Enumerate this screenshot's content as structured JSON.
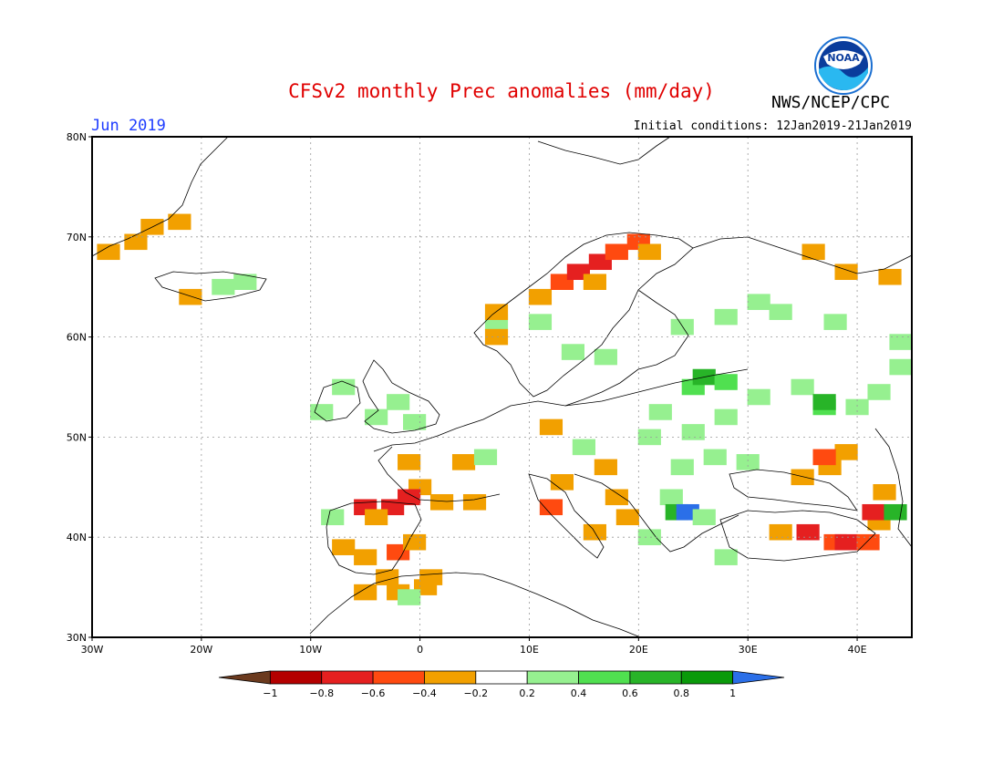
{
  "header": {
    "title": "CFSv2 monthly Prec anomalies (mm/day)",
    "organization": "NWS/NCEP/CPC",
    "logo_text": "NOAA",
    "month": "Jun 2019",
    "initial_conditions": "Initial conditions: 12Jan2019-21Jan2019"
  },
  "map": {
    "lon_range": [
      -30,
      45
    ],
    "lat_range": [
      30,
      80
    ],
    "lon_ticks": [
      "30W",
      "20W",
      "10W",
      "0",
      "10E",
      "20E",
      "30E",
      "40E"
    ],
    "lat_ticks": [
      "30N",
      "40N",
      "50N",
      "60N",
      "70N",
      "80N"
    ],
    "grid": "dotted",
    "anomaly_cells": [
      {
        "lon": -28.5,
        "lat": 68.5,
        "value": -0.3
      },
      {
        "lon": -26,
        "lat": 69.5,
        "value": -0.3
      },
      {
        "lon": -24.5,
        "lat": 71,
        "value": -0.3
      },
      {
        "lon": -22,
        "lat": 71.5,
        "value": -0.3
      },
      {
        "lon": -21,
        "lat": 64,
        "value": -0.3
      },
      {
        "lon": -18,
        "lat": 65,
        "value": 0.3
      },
      {
        "lon": -16,
        "lat": 65.5,
        "value": 0.3
      },
      {
        "lon": -7,
        "lat": 55,
        "value": 0.3
      },
      {
        "lon": -9,
        "lat": 52.5,
        "value": 0.3
      },
      {
        "lon": -4,
        "lat": 52,
        "value": 0.3
      },
      {
        "lon": -2,
        "lat": 53.5,
        "value": 0.3
      },
      {
        "lon": -0.5,
        "lat": 51.5,
        "value": 0.3
      },
      {
        "lon": -1,
        "lat": 47.5,
        "value": -0.3
      },
      {
        "lon": 4,
        "lat": 47.5,
        "value": -0.3
      },
      {
        "lon": 6,
        "lat": 48,
        "value": 0.3
      },
      {
        "lon": 0,
        "lat": 45,
        "value": -0.3
      },
      {
        "lon": -1,
        "lat": 44,
        "value": -0.7
      },
      {
        "lon": 2,
        "lat": 43.5,
        "value": -0.3
      },
      {
        "lon": 5,
        "lat": 43.5,
        "value": -0.3
      },
      {
        "lon": -5,
        "lat": 43,
        "value": -0.7
      },
      {
        "lon": -2.5,
        "lat": 43,
        "value": -0.7
      },
      {
        "lon": -4,
        "lat": 42,
        "value": -0.3
      },
      {
        "lon": -8,
        "lat": 42,
        "value": 0.3
      },
      {
        "lon": -7,
        "lat": 39,
        "value": -0.3
      },
      {
        "lon": -5,
        "lat": 38,
        "value": -0.3
      },
      {
        "lon": -2,
        "lat": 38.5,
        "value": -0.5
      },
      {
        "lon": -0.5,
        "lat": 39.5,
        "value": -0.3
      },
      {
        "lon": -3,
        "lat": 36,
        "value": -0.3
      },
      {
        "lon": -5,
        "lat": 34.5,
        "value": -0.3
      },
      {
        "lon": -2,
        "lat": 34.5,
        "value": -0.3
      },
      {
        "lon": 0.5,
        "lat": 35,
        "value": -0.3
      },
      {
        "lon": 1,
        "lat": 36,
        "value": -0.3
      },
      {
        "lon": -1,
        "lat": 34,
        "value": 0.3
      },
      {
        "lon": 12,
        "lat": 51,
        "value": -0.3
      },
      {
        "lon": 15,
        "lat": 49,
        "value": 0.3
      },
      {
        "lon": 17,
        "lat": 47,
        "value": -0.3
      },
      {
        "lon": 13,
        "lat": 45.5,
        "value": -0.3
      },
      {
        "lon": 12,
        "lat": 43,
        "value": -0.5
      },
      {
        "lon": 18,
        "lat": 44,
        "value": -0.3
      },
      {
        "lon": 19,
        "lat": 42,
        "value": -0.3
      },
      {
        "lon": 16,
        "lat": 40.5,
        "value": -0.3
      },
      {
        "lon": 21,
        "lat": 40,
        "value": 0.3
      },
      {
        "lon": 23,
        "lat": 44,
        "value": 0.3
      },
      {
        "lon": 23.5,
        "lat": 42.5,
        "value": 0.6
      },
      {
        "lon": 24.5,
        "lat": 42.5,
        "value": 1.1
      },
      {
        "lon": 26,
        "lat": 42,
        "value": 0.3
      },
      {
        "lon": 28,
        "lat": 38,
        "value": 0.3
      },
      {
        "lon": 33,
        "lat": 40.5,
        "value": -0.3
      },
      {
        "lon": 35.5,
        "lat": 40.5,
        "value": -0.7
      },
      {
        "lon": 38,
        "lat": 39.5,
        "value": -0.5
      },
      {
        "lon": 39,
        "lat": 39.5,
        "value": -0.7
      },
      {
        "lon": 41,
        "lat": 39.5,
        "value": -0.5
      },
      {
        "lon": 42,
        "lat": 41.5,
        "value": -0.3
      },
      {
        "lon": 41.5,
        "lat": 42.5,
        "value": -0.7
      },
      {
        "lon": 43.5,
        "lat": 42.5,
        "value": 0.7
      },
      {
        "lon": 42.5,
        "lat": 44.5,
        "value": -0.3
      },
      {
        "lon": 37.5,
        "lat": 47,
        "value": -0.3
      },
      {
        "lon": 39,
        "lat": 48.5,
        "value": -0.3
      },
      {
        "lon": 37,
        "lat": 48,
        "value": -0.5
      },
      {
        "lon": 35,
        "lat": 46,
        "value": -0.3
      },
      {
        "lon": 30,
        "lat": 47.5,
        "value": 0.3
      },
      {
        "lon": 27,
        "lat": 48,
        "value": 0.3
      },
      {
        "lon": 24,
        "lat": 47,
        "value": 0.3
      },
      {
        "lon": 21,
        "lat": 50,
        "value": 0.3
      },
      {
        "lon": 25,
        "lat": 50.5,
        "value": 0.3
      },
      {
        "lon": 28,
        "lat": 52,
        "value": 0.3
      },
      {
        "lon": 22,
        "lat": 52.5,
        "value": 0.3
      },
      {
        "lon": 25,
        "lat": 55,
        "value": 0.5
      },
      {
        "lon": 26,
        "lat": 56,
        "value": 0.7
      },
      {
        "lon": 28,
        "lat": 55.5,
        "value": 0.5
      },
      {
        "lon": 31,
        "lat": 54,
        "value": 0.3
      },
      {
        "lon": 35,
        "lat": 55,
        "value": 0.3
      },
      {
        "lon": 37,
        "lat": 53,
        "value": 0.5
      },
      {
        "lon": 40,
        "lat": 53,
        "value": 0.3
      },
      {
        "lon": 42,
        "lat": 54.5,
        "value": 0.3
      },
      {
        "lon": 44,
        "lat": 57,
        "value": 0.3
      },
      {
        "lon": 44,
        "lat": 59.5,
        "value": 0.3
      },
      {
        "lon": 37,
        "lat": 53.5,
        "value": 0.6
      },
      {
        "lon": 24,
        "lat": 61,
        "value": 0.3
      },
      {
        "lon": 28,
        "lat": 62,
        "value": 0.3
      },
      {
        "lon": 31,
        "lat": 63.5,
        "value": 0.3
      },
      {
        "lon": 33,
        "lat": 62.5,
        "value": 0.3
      },
      {
        "lon": 38,
        "lat": 61.5,
        "value": 0.3
      },
      {
        "lon": 14,
        "lat": 58.5,
        "value": 0.3
      },
      {
        "lon": 17,
        "lat": 58,
        "value": 0.3
      },
      {
        "lon": 11,
        "lat": 61.5,
        "value": 0.3
      },
      {
        "lon": 7,
        "lat": 61.5,
        "value": 0.3
      },
      {
        "lon": 7,
        "lat": 60,
        "value": -0.3
      },
      {
        "lon": 7,
        "lat": 62.5,
        "value": -0.3
      },
      {
        "lon": 11,
        "lat": 64,
        "value": -0.3
      },
      {
        "lon": 13,
        "lat": 65.5,
        "value": -0.5
      },
      {
        "lon": 14.5,
        "lat": 66.5,
        "value": -0.7
      },
      {
        "lon": 16.5,
        "lat": 67.5,
        "value": -0.7
      },
      {
        "lon": 18,
        "lat": 68.5,
        "value": -0.5
      },
      {
        "lon": 20,
        "lat": 69.5,
        "value": -0.5
      },
      {
        "lon": 21,
        "lat": 68.5,
        "value": -0.3
      },
      {
        "lon": 16,
        "lat": 65.5,
        "value": -0.3
      },
      {
        "lon": 36,
        "lat": 68.5,
        "value": -0.3
      },
      {
        "lon": 39,
        "lat": 66.5,
        "value": -0.3
      },
      {
        "lon": 43,
        "lat": 66,
        "value": -0.3
      }
    ]
  },
  "colorbar": {
    "labels": [
      "-1",
      "-0.8",
      "-0.6",
      "-0.4",
      "-0.2",
      "0.2",
      "0.4",
      "0.6",
      "0.8",
      "1"
    ],
    "colors": [
      "#6b3a1e",
      "#b40000",
      "#e52020",
      "#ff4a10",
      "#f2a000",
      "#ffffff",
      "#96f090",
      "#50e050",
      "#28b428",
      "#0a9a0a",
      "#2b6fe8"
    ],
    "bounds": [
      -1,
      -0.8,
      -0.6,
      -0.4,
      -0.2,
      0.2,
      0.4,
      0.6,
      0.8,
      1
    ]
  }
}
